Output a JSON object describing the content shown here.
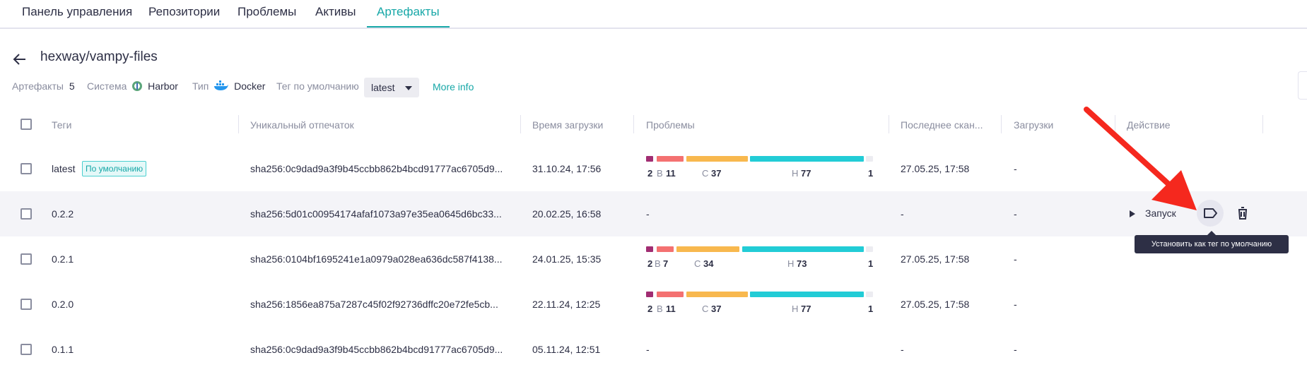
{
  "nav": {
    "tabs": [
      {
        "label": "Панель управления"
      },
      {
        "label": "Репозитории"
      },
      {
        "label": "Проблемы"
      },
      {
        "label": "Активы"
      },
      {
        "label": "Артефакты"
      }
    ]
  },
  "header": {
    "title": "hexway/vampy-files",
    "artifacts_label": "Артефакты",
    "artifacts_count": "5",
    "system_label": "Система",
    "system_value": "Harbor",
    "type_label": "Тип",
    "type_value": "Docker",
    "default_tag_label": "Тег по умолчанию",
    "default_tag_value": "latest",
    "more_info": "More info"
  },
  "table": {
    "columns": [
      "Теги",
      "Уникальный отпечаток",
      "Время загрузки",
      "Проблемы",
      "Последнее скан...",
      "Загрузки",
      "Действие"
    ],
    "rows": [
      {
        "tag": "latest",
        "badge": "По умолчанию",
        "digest": "sha256:0c9dad9a3f9b45ccbb862b4bcd91777ac6705d9...",
        "time": "31.10.24, 17:56",
        "issues": {
          "c": "2",
          "h": "11",
          "m": "37",
          "l": "77",
          "i": "1"
        },
        "scan": "27.05.25, 17:58",
        "downloads": "-"
      },
      {
        "tag": "0.2.2",
        "badge": "",
        "digest": "sha256:5d01c00954174afaf1073a97e35ea0645d6bc33...",
        "time": "20.02.25, 16:58",
        "issues_text": "-",
        "scan": "-",
        "downloads": "-"
      },
      {
        "tag": "0.2.1",
        "badge": "",
        "digest": "sha256:0104bf1695241e1a0979a028ea636dc587f4138...",
        "time": "24.01.25, 15:35",
        "issues": {
          "c": "2",
          "h": "7",
          "m": "34",
          "l": "73",
          "i": "1"
        },
        "scan": "27.05.25, 17:58",
        "downloads": "-"
      },
      {
        "tag": "0.2.0",
        "badge": "",
        "digest": "sha256:1856ea875a7287c45f02f92736dffc20e72fe5cb...",
        "time": "22.11.24, 12:25",
        "issues": {
          "c": "2",
          "h": "11",
          "m": "37",
          "l": "77",
          "i": "1"
        },
        "scan": "27.05.25, 17:58",
        "downloads": "-"
      },
      {
        "tag": "0.1.1",
        "badge": "",
        "digest": "sha256:0c9dad9a3f9b45ccbb862b4bcd91777ac6705d9...",
        "time": "05.11.24, 12:51",
        "issues_text": "-",
        "scan": "-",
        "downloads": "-"
      }
    ],
    "severity_letters": {
      "h": "В",
      "m": "С",
      "l": "Н"
    }
  },
  "actions": {
    "run_label": "Запуск",
    "tooltip": "Установить как тег по умолчанию"
  },
  "colors": {
    "accent": "#16a7a7",
    "critical": "#a12d72",
    "high": "#f47171",
    "medium": "#f8b84e",
    "low": "#22ccd6",
    "info": "#ececf1",
    "annotation_arrow": "#f5281e"
  }
}
